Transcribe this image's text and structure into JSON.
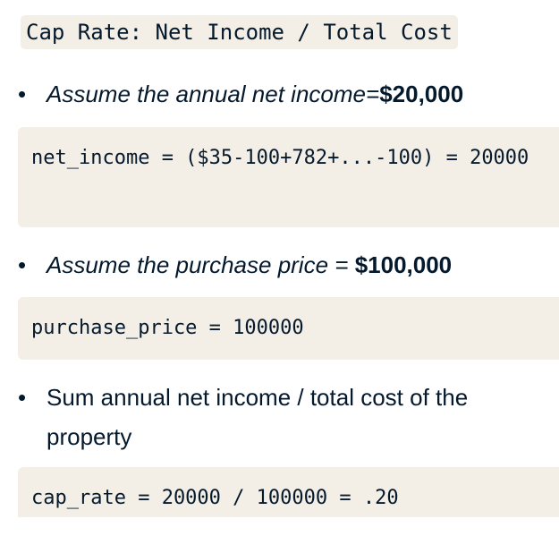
{
  "heading": "Cap Rate: Net Income / Total Cost",
  "bullets": [
    {
      "dot": "•",
      "text": "Assume the annual net income=",
      "value": "$20,000"
    },
    {
      "dot": "•",
      "text": "Assume the purchase price = ",
      "value": "$100,000"
    },
    {
      "dot": "•",
      "text": "Sum annual net income / total cost of the property"
    }
  ],
  "code": [
    "net_income = ($35-100+782+...-100) = 20000",
    "purchase_price = 100000",
    "cap_rate = 20000 / 100000 = .20"
  ]
}
